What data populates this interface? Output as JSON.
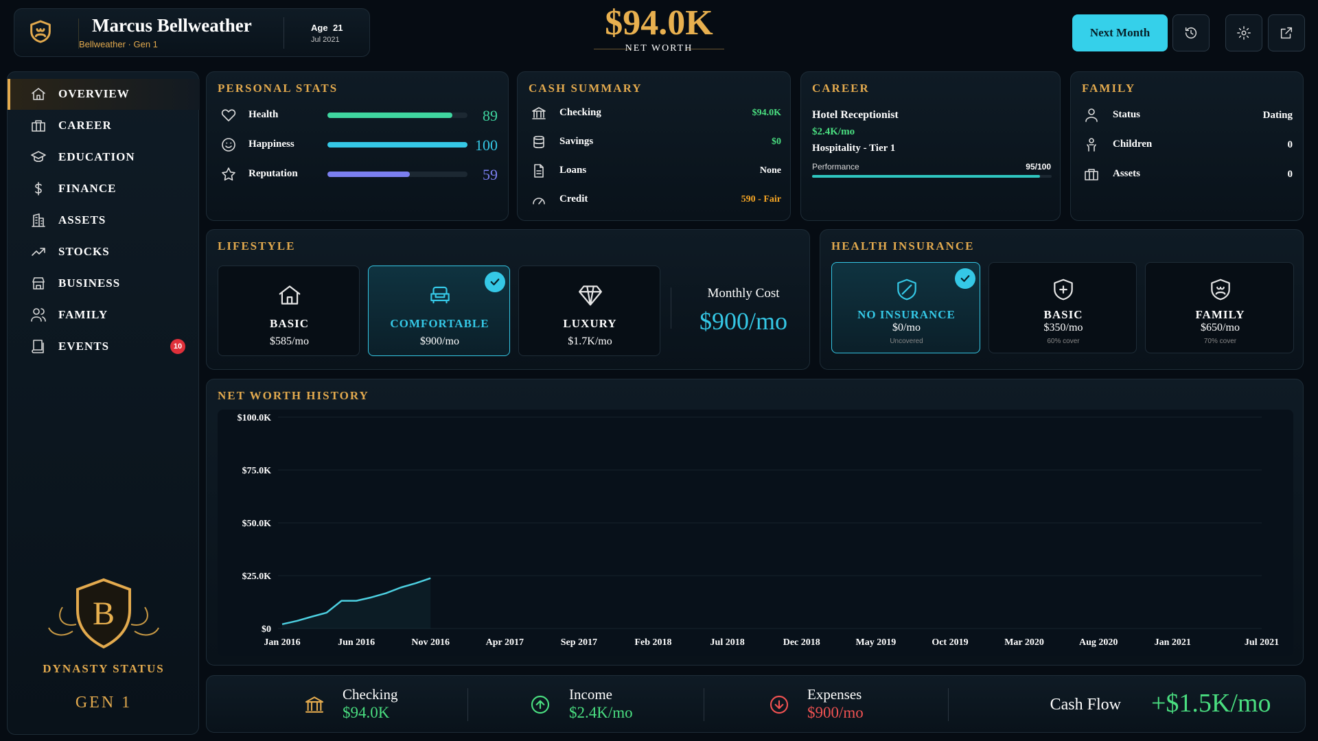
{
  "header": {
    "name": "Marcus Bellweather",
    "subtitle": "Bellweather · Gen 1",
    "age_label": "Age",
    "age": 21,
    "date": "Jul 2021",
    "net_worth": "$94.0K",
    "net_worth_label": "NET WORTH",
    "next_month": "Next Month"
  },
  "sidebar": {
    "nav": [
      "OVERVIEW",
      "CAREER",
      "EDUCATION",
      "FINANCE",
      "ASSETS",
      "STOCKS",
      "BUSINESS",
      "FAMILY",
      "EVENTS"
    ],
    "active": 0,
    "events_badge": 10,
    "crest_letter": "B",
    "dynasty_label": "DYNASTY STATUS",
    "generation": "GEN 1"
  },
  "personal_stats": {
    "title": "PERSONAL STATS",
    "xlim": [
      0,
      100
    ],
    "stats": [
      {
        "label": "Health",
        "value": 89,
        "color": "#3fd6a0"
      },
      {
        "label": "Happiness",
        "value": 100,
        "color": "#35c8e6"
      },
      {
        "label": "Reputation",
        "value": 59,
        "color": "#7b7ff0"
      }
    ]
  },
  "cash_summary": {
    "title": "CASH SUMMARY",
    "rows": [
      {
        "label": "Checking",
        "value": "$94.0K",
        "color": "#4ade80"
      },
      {
        "label": "Savings",
        "value": "$0",
        "color": "#4ade80"
      },
      {
        "label": "Loans",
        "value": "None",
        "color": "#ffffff"
      },
      {
        "label": "Credit",
        "value": "590 - Fair",
        "color": "#f5a524"
      }
    ]
  },
  "career": {
    "title": "CAREER",
    "job": "Hotel Receptionist",
    "salary": "$2.4K/mo",
    "level": "Hospitality - Tier 1",
    "performance": {
      "label": "Performance",
      "value": 95,
      "max": 100,
      "text": "95/100"
    }
  },
  "family": {
    "title": "FAMILY",
    "rows": [
      {
        "label": "Status",
        "value": "Dating"
      },
      {
        "label": "Children",
        "value": 0
      },
      {
        "label": "Assets",
        "value": 0
      }
    ]
  },
  "lifestyle": {
    "title": "LIFESTYLE",
    "options": [
      {
        "name": "BASIC",
        "cost": "$585/mo"
      },
      {
        "name": "COMFORTABLE",
        "cost": "$900/mo"
      },
      {
        "name": "LUXURY",
        "cost": "$1.7K/mo"
      }
    ],
    "selected": 1,
    "monthly_cost_label": "Monthly Cost",
    "monthly_cost": "$900/mo"
  },
  "health_insurance": {
    "title": "HEALTH INSURANCE",
    "options": [
      {
        "name": "NO INSURANCE",
        "cost": "$0/mo",
        "note": "Uncovered"
      },
      {
        "name": "BASIC",
        "cost": "$350/mo",
        "note": "60% cover"
      },
      {
        "name": "FAMILY",
        "cost": "$650/mo",
        "note": "70% cover"
      }
    ],
    "selected": 0
  },
  "chart_data": {
    "type": "line",
    "title": "NET WORTH HISTORY",
    "x": [
      "2016-01",
      "2016-02",
      "2016-03",
      "2016-04",
      "2016-05",
      "2016-06",
      "2016-07",
      "2016-08",
      "2016-09",
      "2016-10",
      "2016-11"
    ],
    "values": [
      2000,
      3600,
      5600,
      7500,
      13100,
      13100,
      14700,
      16700,
      19400,
      21400,
      23800
    ],
    "color": "#4dd0e1",
    "xlim": [
      "2016-01",
      "2021-07"
    ],
    "xticks": [
      {
        "value": "2016-01",
        "label": "Jan 2016"
      },
      {
        "value": "2016-06",
        "label": "Jun 2016"
      },
      {
        "value": "2016-11",
        "label": "Nov 2016"
      },
      {
        "value": "2017-04",
        "label": "Apr 2017"
      },
      {
        "value": "2017-09",
        "label": "Sep 2017"
      },
      {
        "value": "2018-02",
        "label": "Feb 2018"
      },
      {
        "value": "2018-07",
        "label": "Jul 2018"
      },
      {
        "value": "2018-12",
        "label": "Dec 2018"
      },
      {
        "value": "2019-05",
        "label": "May 2019"
      },
      {
        "value": "2019-10",
        "label": "Oct 2019"
      },
      {
        "value": "2020-03",
        "label": "Mar 2020"
      },
      {
        "value": "2020-08",
        "label": "Aug 2020"
      },
      {
        "value": "2021-01",
        "label": "Jan 2021"
      },
      {
        "value": "2021-07",
        "label": "Jul 2021"
      }
    ],
    "ylim": [
      0,
      100000
    ],
    "yticks": [
      {
        "value": 0,
        "label": "$0"
      },
      {
        "value": 25000,
        "label": "$25.0K"
      },
      {
        "value": 50000,
        "label": "$50.0K"
      },
      {
        "value": 75000,
        "label": "$75.0K"
      },
      {
        "value": 100000,
        "label": "$100.0K"
      }
    ],
    "grid": true
  },
  "cash_flow_bar": {
    "items": [
      {
        "label": "Checking",
        "value": "$94.0K",
        "color": "#4ade80"
      },
      {
        "label": "Income",
        "value": "$2.4K/mo",
        "color": "#4ade80"
      },
      {
        "label": "Expenses",
        "value": "$900/mo",
        "color": "#f05252"
      }
    ],
    "total_label": "Cash Flow",
    "total": "+$1.5K/mo",
    "total_color": "#4ade80"
  }
}
